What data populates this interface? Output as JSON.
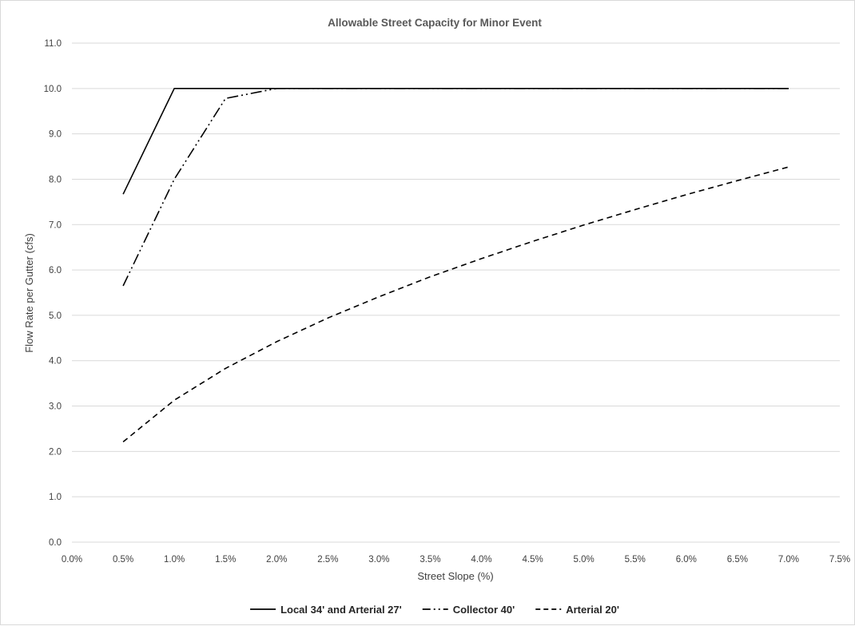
{
  "chart_data": {
    "type": "line",
    "title": "Allowable Street Capacity for Minor Event",
    "xlabel": "Street Slope (%)",
    "ylabel": "Flow Rate per Gutter (cfs)",
    "xlim": [
      0.0,
      7.5
    ],
    "ylim": [
      0.0,
      11.0
    ],
    "x_ticks": [
      "0.0%",
      "0.5%",
      "1.0%",
      "1.5%",
      "2.0%",
      "2.5%",
      "3.0%",
      "3.5%",
      "4.0%",
      "4.5%",
      "5.0%",
      "5.5%",
      "6.0%",
      "6.5%",
      "7.0%",
      "7.5%"
    ],
    "y_ticks": [
      "0.0",
      "1.0",
      "2.0",
      "3.0",
      "4.0",
      "5.0",
      "6.0",
      "7.0",
      "8.0",
      "9.0",
      "10.0",
      "11.0"
    ],
    "grid": "horizontal",
    "legend_position": "bottom",
    "series": [
      {
        "name": "Local 34' and Arterial 27'",
        "dash": "solid",
        "color": "#000000",
        "x": [
          0.5,
          1.0,
          1.5,
          2.0,
          2.5,
          3.0,
          3.5,
          4.0,
          4.5,
          5.0,
          5.5,
          6.0,
          6.5,
          7.0
        ],
        "y": [
          7.67,
          10.0,
          10.0,
          10.0,
          10.0,
          10.0,
          10.0,
          10.0,
          10.0,
          10.0,
          10.0,
          10.0,
          10.0,
          10.0
        ]
      },
      {
        "name": "Collector 40'",
        "dash": "dash-dot-dot",
        "color": "#000000",
        "x": [
          0.5,
          1.0,
          1.5,
          2.0,
          2.5,
          3.0,
          3.5,
          4.0,
          4.5,
          5.0,
          5.5,
          6.0,
          6.5,
          7.0
        ],
        "y": [
          5.65,
          8.0,
          9.78,
          10.0,
          10.0,
          10.0,
          10.0,
          10.0,
          10.0,
          10.0,
          10.0,
          10.0,
          10.0,
          10.0
        ]
      },
      {
        "name": "Arterial 20'",
        "dash": "dashed",
        "color": "#000000",
        "x": [
          0.5,
          1.0,
          1.5,
          2.0,
          2.5,
          3.0,
          3.5,
          4.0,
          4.5,
          5.0,
          5.5,
          6.0,
          6.5,
          7.0
        ],
        "y": [
          2.21,
          3.13,
          3.83,
          4.42,
          4.94,
          5.41,
          5.85,
          6.25,
          6.63,
          6.99,
          7.33,
          7.66,
          7.97,
          8.27
        ]
      }
    ]
  },
  "colors": {
    "gridline": "#d9d9d9",
    "series_line": "#000000",
    "tick_text": "#404040"
  }
}
